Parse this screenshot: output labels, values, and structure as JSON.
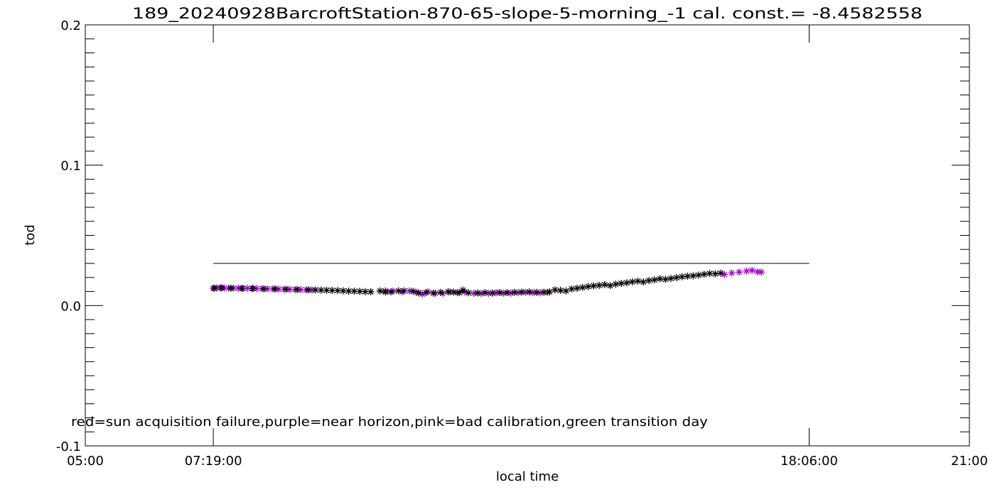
{
  "chart_data": {
    "type": "scatter",
    "title": "189_20240928BarcroftStation-870-65-slope-5-morning_-1 cal. const.= -8.4582558",
    "xlabel": "local time",
    "ylabel": "tod",
    "xlim": [
      "05:00",
      "21:00"
    ],
    "ylim": [
      -0.1,
      0.2
    ],
    "x_tick_labels": [
      "05:00",
      "07:19:00",
      "18:06:00",
      "21:00"
    ],
    "y_tick_labels": [
      "-0.1",
      "0.0",
      "0.1",
      "0.2"
    ],
    "y_ticks": [
      -0.1,
      0.0,
      0.1,
      0.2
    ],
    "reference_line": {
      "y": 0.03,
      "x_start": "07:19:00",
      "x_end": "18:06:00",
      "color": "#000000"
    },
    "annotation": "red=sun acquisition failure,purple=near horizon,pink=bad calibration,green transition day",
    "grid": false,
    "series": [
      {
        "color": "#a000c8",
        "points": [
          [
            "07:19",
            0.0125
          ],
          [
            "07:23",
            0.0126
          ],
          [
            "07:27",
            0.0126
          ],
          [
            "07:31",
            0.0125
          ],
          [
            "07:36",
            0.0125
          ],
          [
            "07:41",
            0.0124
          ],
          [
            "07:46",
            0.0124
          ],
          [
            "07:51",
            0.0123
          ],
          [
            "07:56",
            0.0123
          ],
          [
            "08:01",
            0.0122
          ],
          [
            "08:06",
            0.0121
          ],
          [
            "08:12",
            0.012
          ],
          [
            "08:18",
            0.0119
          ],
          [
            "08:24",
            0.0118
          ],
          [
            "08:30",
            0.0117
          ],
          [
            "08:36",
            0.0116
          ],
          [
            "08:42",
            0.0115
          ],
          [
            "08:48",
            0.0114
          ],
          [
            "08:54",
            0.0113
          ],
          [
            "09:00",
            0.0112
          ],
          [
            "09:06",
            0.0111
          ],
          [
            "10:26",
            0.0105
          ],
          [
            "10:34",
            0.0102
          ],
          [
            "10:44",
            0.0098
          ],
          [
            "10:52",
            0.0104
          ],
          [
            "11:00",
            0.0094
          ],
          [
            "11:06",
            0.0082
          ],
          [
            "11:12",
            0.0098
          ],
          [
            "11:20",
            0.0088
          ],
          [
            "11:28",
            0.0087
          ],
          [
            "11:36",
            0.0096
          ],
          [
            "11:44",
            0.0092
          ],
          [
            "11:52",
            0.0097
          ],
          [
            "12:02",
            0.0087
          ],
          [
            "12:10",
            0.0086
          ],
          [
            "12:18",
            0.0088
          ],
          [
            "12:26",
            0.0091
          ],
          [
            "12:34",
            0.0088
          ],
          [
            "12:42",
            0.0089
          ],
          [
            "12:50",
            0.0092
          ],
          [
            "12:58",
            0.0094
          ],
          [
            "13:06",
            0.0092
          ],
          [
            "13:14",
            0.0091
          ],
          [
            "13:22",
            0.0093
          ],
          [
            "16:34",
            0.0222
          ],
          [
            "16:42",
            0.0232
          ],
          [
            "16:50",
            0.0238
          ],
          [
            "16:58",
            0.0246
          ],
          [
            "17:04",
            0.025
          ],
          [
            "17:10",
            0.024
          ],
          [
            "17:14",
            0.0238
          ]
        ]
      },
      {
        "color": "#000000",
        "points": [
          [
            "07:20",
            0.0123
          ],
          [
            "07:28",
            0.0126
          ],
          [
            "07:38",
            0.0124
          ],
          [
            "07:50",
            0.0122
          ],
          [
            "08:02",
            0.0121
          ],
          [
            "08:14",
            0.0119
          ],
          [
            "08:26",
            0.0118
          ],
          [
            "08:38",
            0.0116
          ],
          [
            "08:50",
            0.0114
          ],
          [
            "09:02",
            0.0112
          ],
          [
            "09:10",
            0.0111
          ],
          [
            "09:16",
            0.011
          ],
          [
            "09:22",
            0.0109
          ],
          [
            "09:28",
            0.0108
          ],
          [
            "09:34",
            0.0107
          ],
          [
            "09:40",
            0.0105
          ],
          [
            "09:46",
            0.0103
          ],
          [
            "09:52",
            0.0102
          ],
          [
            "09:58",
            0.0101
          ],
          [
            "10:04",
            0.0099
          ],
          [
            "10:10",
            0.0098
          ],
          [
            "10:20",
            0.0104
          ],
          [
            "10:26",
            0.0096
          ],
          [
            "10:32",
            0.0098
          ],
          [
            "10:40",
            0.0105
          ],
          [
            "10:46",
            0.0104
          ],
          [
            "10:56",
            0.0101
          ],
          [
            "11:02",
            0.009
          ],
          [
            "11:10",
            0.0093
          ],
          [
            "11:18",
            0.0089
          ],
          [
            "11:26",
            0.0094
          ],
          [
            "11:34",
            0.0098
          ],
          [
            "11:40",
            0.0096
          ],
          [
            "11:46",
            0.0092
          ],
          [
            "11:50",
            0.011
          ],
          [
            "11:56",
            0.0091
          ],
          [
            "12:06",
            0.009
          ],
          [
            "12:14",
            0.0092
          ],
          [
            "12:22",
            0.0089
          ],
          [
            "12:30",
            0.0093
          ],
          [
            "12:38",
            0.0092
          ],
          [
            "12:46",
            0.0094
          ],
          [
            "12:54",
            0.0096
          ],
          [
            "13:02",
            0.0097
          ],
          [
            "13:10",
            0.0094
          ],
          [
            "13:18",
            0.0095
          ],
          [
            "13:24",
            0.0098
          ],
          [
            "13:30",
            0.0112
          ],
          [
            "13:36",
            0.0108
          ],
          [
            "13:42",
            0.0104
          ],
          [
            "13:48",
            0.0118
          ],
          [
            "13:54",
            0.0123
          ],
          [
            "14:00",
            0.0129
          ],
          [
            "14:06",
            0.0135
          ],
          [
            "14:12",
            0.014
          ],
          [
            "14:18",
            0.0144
          ],
          [
            "14:24",
            0.0149
          ],
          [
            "14:30",
            0.0142
          ],
          [
            "14:36",
            0.0152
          ],
          [
            "14:42",
            0.0158
          ],
          [
            "14:48",
            0.0162
          ],
          [
            "14:54",
            0.0169
          ],
          [
            "15:00",
            0.0174
          ],
          [
            "15:06",
            0.0168
          ],
          [
            "15:12",
            0.0178
          ],
          [
            "15:18",
            0.0183
          ],
          [
            "15:24",
            0.0191
          ],
          [
            "15:30",
            0.0187
          ],
          [
            "15:36",
            0.0193
          ],
          [
            "15:42",
            0.0199
          ],
          [
            "15:48",
            0.0205
          ],
          [
            "15:54",
            0.0209
          ],
          [
            "16:00",
            0.0212
          ],
          [
            "16:06",
            0.0217
          ],
          [
            "16:12",
            0.0223
          ],
          [
            "16:18",
            0.0228
          ],
          [
            "16:24",
            0.0226
          ],
          [
            "16:30",
            0.0231
          ]
        ]
      }
    ]
  }
}
